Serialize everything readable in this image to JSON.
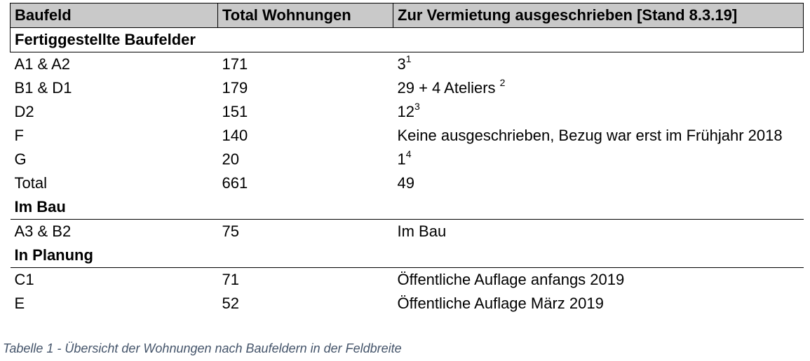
{
  "table": {
    "headers": {
      "baufeld": "Baufeld",
      "total": "Total Wohnungen",
      "vermietung": "Zur Vermietung ausgeschrieben [Stand 8.3.19]"
    },
    "sections": [
      {
        "title": "Fertiggestellte Baufelder",
        "rows": [
          {
            "baufeld": "A1 & A2",
            "total": "171",
            "vermietung": "3",
            "footnote": "1"
          },
          {
            "baufeld": "B1 & D1",
            "total": "179",
            "vermietung": "29 + 4 Ateliers ",
            "footnote": "2"
          },
          {
            "baufeld": "D2",
            "total": "151",
            "vermietung": "12",
            "footnote": "3"
          },
          {
            "baufeld": "F",
            "total": "140",
            "vermietung": "Keine ausgeschrieben, Bezug war erst im Frühjahr 2018",
            "footnote": ""
          },
          {
            "baufeld": "G",
            "total": "20",
            "vermietung": "1",
            "footnote": "4"
          },
          {
            "baufeld": "Total",
            "total": "661",
            "vermietung": "49",
            "footnote": ""
          }
        ]
      },
      {
        "title": "Im Bau",
        "rows": [
          {
            "baufeld": "A3 & B2",
            "total": "75",
            "vermietung": "Im Bau",
            "footnote": ""
          }
        ]
      },
      {
        "title": "In Planung",
        "rows": [
          {
            "baufeld": "C1",
            "total": "71",
            "vermietung": "Öffentliche Auflage anfangs 2019",
            "footnote": ""
          },
          {
            "baufeld": "E",
            "total": "52",
            "vermietung": "Öffentliche Auflage März 2019",
            "footnote": ""
          }
        ]
      }
    ]
  },
  "caption": "Tabelle 1 - Übersicht der Wohnungen nach Baufeldern in der Feldbreite"
}
